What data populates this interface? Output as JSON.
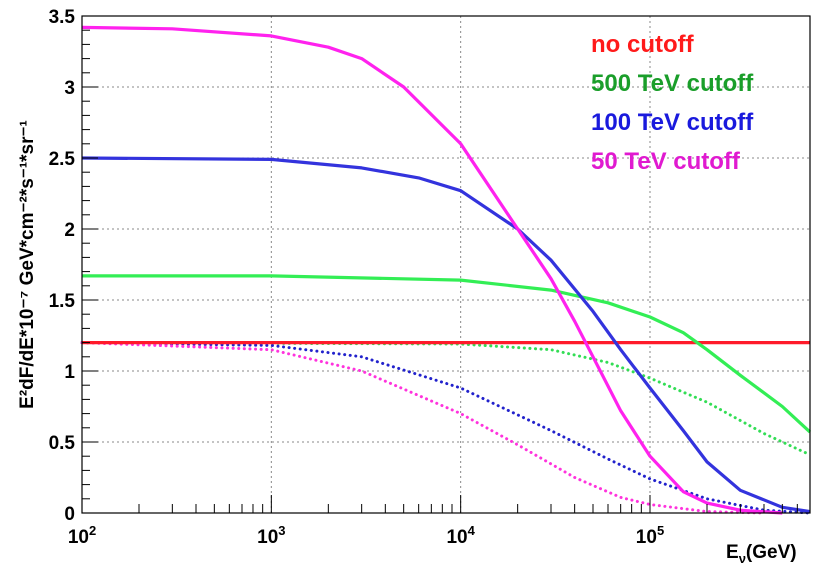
{
  "chart_data": {
    "type": "line",
    "x_scale": "log",
    "xlim": [
      100,
      700000
    ],
    "ylim": [
      0,
      3.5
    ],
    "grid": true,
    "legend_position": "top-right",
    "xlabel": {
      "main": "E",
      "sub": "ν",
      "rest": "(GeV)"
    },
    "ylabel": "E²dF/dE*10⁻⁷ GeV*cm⁻²*s⁻¹*sr⁻¹",
    "y_ticks": [
      {
        "value": 0,
        "label": "0"
      },
      {
        "value": 0.5,
        "label": "0.5"
      },
      {
        "value": 1,
        "label": "1"
      },
      {
        "value": 1.5,
        "label": "1.5"
      },
      {
        "value": 2,
        "label": "2"
      },
      {
        "value": 2.5,
        "label": "2.5"
      },
      {
        "value": 3,
        "label": "3"
      },
      {
        "value": 3.5,
        "label": "3.5"
      }
    ],
    "x_ticks": [
      {
        "value": 100,
        "base": "10",
        "exp": "2"
      },
      {
        "value": 1000,
        "base": "10",
        "exp": "3"
      },
      {
        "value": 10000,
        "base": "10",
        "exp": "4"
      },
      {
        "value": 100000,
        "base": "10",
        "exp": "5"
      }
    ],
    "legend": [
      {
        "label": "no cutoff",
        "color": "#ff1a1a"
      },
      {
        "label": "500 TeV cutoff",
        "color": "#1a9e2a"
      },
      {
        "label": "100 TeV cutoff",
        "color": "#1a1add"
      },
      {
        "label": "50 TeV cutoff",
        "color": "#e01ad0"
      }
    ],
    "series": [
      {
        "style": "solid",
        "color": "#ff1a2a",
        "points": [
          [
            100,
            1.2
          ],
          [
            700000,
            1.2
          ]
        ]
      },
      {
        "style": "solid",
        "color": "#33ee55",
        "points": [
          [
            100,
            1.67
          ],
          [
            1000,
            1.67
          ],
          [
            10000,
            1.64
          ],
          [
            30000,
            1.57
          ],
          [
            60000,
            1.48
          ],
          [
            100000,
            1.38
          ],
          [
            150000,
            1.27
          ],
          [
            200000,
            1.15
          ],
          [
            300000,
            0.97
          ],
          [
            500000,
            0.75
          ],
          [
            700000,
            0.57
          ]
        ]
      },
      {
        "style": "solid",
        "color": "#3333dd",
        "points": [
          [
            100,
            2.5
          ],
          [
            1000,
            2.49
          ],
          [
            3000,
            2.43
          ],
          [
            6000,
            2.36
          ],
          [
            10000,
            2.27
          ],
          [
            20000,
            2.0
          ],
          [
            30000,
            1.78
          ],
          [
            50000,
            1.42
          ],
          [
            70000,
            1.15
          ],
          [
            100000,
            0.88
          ],
          [
            150000,
            0.58
          ],
          [
            200000,
            0.36
          ],
          [
            300000,
            0.16
          ],
          [
            500000,
            0.04
          ],
          [
            700000,
            0.01
          ]
        ]
      },
      {
        "style": "solid",
        "color": "#ff22ee",
        "points": [
          [
            100,
            3.42
          ],
          [
            300,
            3.41
          ],
          [
            1000,
            3.36
          ],
          [
            2000,
            3.28
          ],
          [
            3000,
            3.2
          ],
          [
            5000,
            3.0
          ],
          [
            10000,
            2.6
          ],
          [
            20000,
            2.0
          ],
          [
            30000,
            1.65
          ],
          [
            40000,
            1.35
          ],
          [
            50000,
            1.1
          ],
          [
            70000,
            0.72
          ],
          [
            100000,
            0.4
          ],
          [
            150000,
            0.15
          ],
          [
            200000,
            0.07
          ],
          [
            300000,
            0.02
          ],
          [
            500000,
            0.0
          ]
        ]
      },
      {
        "style": "dotted",
        "color": "#33dd55",
        "points": [
          [
            100,
            1.2
          ],
          [
            10000,
            1.19
          ],
          [
            30000,
            1.15
          ],
          [
            60000,
            1.06
          ],
          [
            100000,
            0.95
          ],
          [
            200000,
            0.78
          ],
          [
            400000,
            0.56
          ],
          [
            700000,
            0.41
          ]
        ]
      },
      {
        "style": "dotted",
        "color": "#2222cc",
        "points": [
          [
            100,
            1.2
          ],
          [
            1000,
            1.18
          ],
          [
            3000,
            1.1
          ],
          [
            10000,
            0.88
          ],
          [
            30000,
            0.58
          ],
          [
            60000,
            0.38
          ],
          [
            100000,
            0.24
          ],
          [
            200000,
            0.1
          ],
          [
            400000,
            0.02
          ],
          [
            700000,
            0.0
          ]
        ]
      },
      {
        "style": "dotted",
        "color": "#ff33dd",
        "points": [
          [
            100,
            1.2
          ],
          [
            1000,
            1.15
          ],
          [
            3000,
            1.0
          ],
          [
            10000,
            0.7
          ],
          [
            20000,
            0.48
          ],
          [
            40000,
            0.25
          ],
          [
            70000,
            0.11
          ],
          [
            100000,
            0.06
          ],
          [
            200000,
            0.01
          ],
          [
            400000,
            0.0
          ]
        ]
      }
    ]
  }
}
